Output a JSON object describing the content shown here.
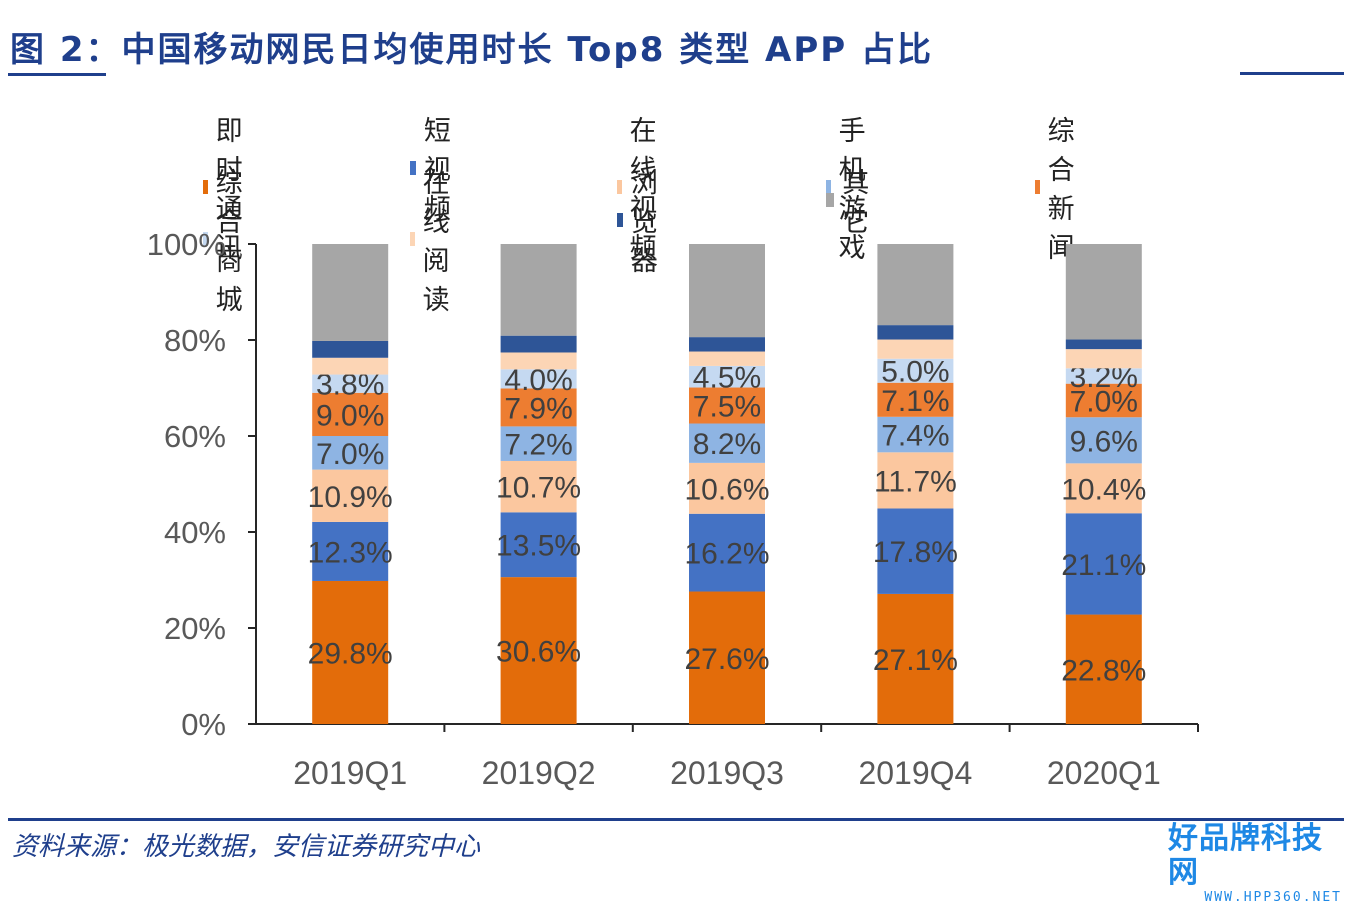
{
  "figure": {
    "title": "图 2：中国移动网民日均使用时长 Top8 类型 APP 占比",
    "source": "资料来源：极光数据，安信证券研究中心"
  },
  "watermark": {
    "main": "好品牌科技网",
    "sub": "WWW.HPP360.NET"
  },
  "colors": {
    "rule": "#1f3f8c",
    "series": [
      "#e36c0a",
      "#4472c4",
      "#fbc79f",
      "#8eb4e3",
      "#ed7d31",
      "#c5d9f1",
      "#fcd5b5",
      "#2e5597",
      "#a6a6a6"
    ]
  },
  "chart_data": {
    "type": "bar",
    "stacked": true,
    "title": "中国移动网民日均使用时长 Top8 类型 APP 占比",
    "categories": [
      "2019Q1",
      "2019Q2",
      "2019Q3",
      "2019Q4",
      "2020Q1"
    ],
    "ylim": [
      0,
      100
    ],
    "yticks": [
      "0%",
      "20%",
      "40%",
      "60%",
      "80%",
      "100%"
    ],
    "legend_position": "top",
    "series": [
      {
        "name": "即时通讯",
        "values": [
          29.8,
          30.6,
          27.6,
          27.1,
          22.8
        ],
        "labels": [
          "29.8%",
          "30.6%",
          "27.6%",
          "27.1%",
          "22.8%"
        ]
      },
      {
        "name": "短视频",
        "values": [
          12.3,
          13.5,
          16.2,
          17.8,
          21.1
        ],
        "labels": [
          "12.3%",
          "13.5%",
          "16.2%",
          "17.8%",
          "21.1%"
        ]
      },
      {
        "name": "在线视频",
        "values": [
          10.9,
          10.7,
          10.6,
          11.7,
          10.4
        ],
        "labels": [
          "10.9%",
          "10.7%",
          "10.6%",
          "11.7%",
          "10.4%"
        ]
      },
      {
        "name": "手机游戏",
        "values": [
          7.0,
          7.2,
          8.2,
          7.4,
          9.6
        ],
        "labels": [
          "7.0%",
          "7.2%",
          "8.2%",
          "7.4%",
          "9.6%"
        ]
      },
      {
        "name": "综合新闻",
        "values": [
          9.0,
          7.9,
          7.5,
          7.1,
          7.0
        ],
        "labels": [
          "9.0%",
          "7.9%",
          "7.5%",
          "7.1%",
          "7.0%"
        ]
      },
      {
        "name": "综合商城",
        "values": [
          3.8,
          4.0,
          4.5,
          5.0,
          3.2
        ],
        "labels": [
          "3.8%",
          "4.0%",
          "4.5%",
          "5.0%",
          "3.2%"
        ]
      },
      {
        "name": "在线阅读",
        "values": [
          3.5,
          3.5,
          3.0,
          4.0,
          4.0
        ],
        "labels": []
      },
      {
        "name": "浏览器",
        "values": [
          3.5,
          3.5,
          3.0,
          3.0,
          2.0
        ],
        "labels": []
      },
      {
        "name": "其它",
        "values": [
          20.2,
          19.1,
          19.4,
          16.9,
          19.9
        ],
        "labels": []
      }
    ]
  }
}
